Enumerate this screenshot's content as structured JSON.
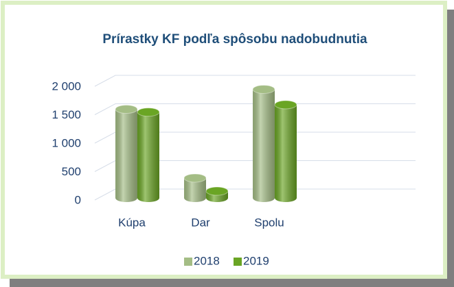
{
  "chart_data": {
    "type": "bar",
    "title": "Prírastky KF  podľa spôsobu nadobudnutia",
    "categories": [
      "Kúpa",
      "Dar",
      "Spolu"
    ],
    "series": [
      {
        "name": "2018",
        "color": "#a4bd85",
        "values": [
          1560,
          350,
          1910
        ]
      },
      {
        "name": "2019",
        "color": "#6aa524",
        "values": [
          1510,
          120,
          1640
        ]
      }
    ],
    "ylim": [
      0,
      2000
    ],
    "yticks": [
      0,
      500,
      {
        "value": 1000,
        "label": "1 000"
      },
      {
        "value": 1500,
        "label": "1 500"
      },
      {
        "value": 2000,
        "label": "2 000"
      }
    ],
    "grid": true,
    "legend": "bottom"
  }
}
